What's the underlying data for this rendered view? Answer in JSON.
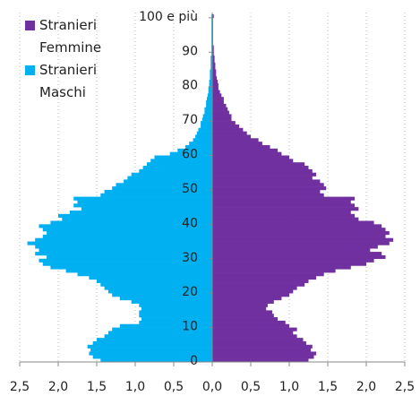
{
  "chart_data": {
    "type": "pyramid",
    "categories": [
      "0",
      null,
      null,
      null,
      null,
      null,
      null,
      null,
      null,
      null,
      "10",
      null,
      null,
      null,
      null,
      null,
      null,
      null,
      null,
      null,
      "20",
      null,
      null,
      null,
      null,
      null,
      null,
      null,
      null,
      null,
      "30",
      null,
      null,
      null,
      null,
      null,
      null,
      null,
      null,
      null,
      "40",
      null,
      null,
      null,
      null,
      null,
      null,
      null,
      null,
      null,
      "50",
      null,
      null,
      null,
      null,
      null,
      null,
      null,
      null,
      null,
      "60",
      null,
      null,
      null,
      null,
      null,
      null,
      null,
      null,
      null,
      "70",
      null,
      null,
      null,
      null,
      null,
      null,
      null,
      null,
      null,
      "80",
      null,
      null,
      null,
      null,
      null,
      null,
      null,
      null,
      null,
      "90",
      null,
      null,
      null,
      null,
      null,
      null,
      null,
      null,
      null,
      "100 e più"
    ],
    "series": [
      {
        "name": "Stranieri Femmine",
        "color": "#7030a0",
        "values": [
          1.25,
          1.32,
          1.35,
          1.28,
          1.3,
          1.22,
          1.18,
          1.1,
          1.05,
          1.1,
          1.0,
          0.95,
          0.85,
          0.8,
          0.78,
          0.7,
          0.72,
          0.8,
          0.9,
          1.0,
          1.05,
          1.1,
          1.2,
          1.25,
          1.35,
          1.45,
          1.6,
          1.8,
          2.0,
          2.1,
          2.25,
          2.2,
          2.05,
          2.15,
          2.3,
          2.35,
          2.25,
          2.3,
          2.25,
          2.2,
          2.1,
          1.9,
          1.85,
          1.8,
          1.9,
          1.85,
          1.8,
          1.85,
          1.45,
          1.4,
          1.48,
          1.45,
          1.4,
          1.3,
          1.35,
          1.3,
          1.25,
          1.2,
          1.05,
          1.0,
          0.9,
          0.85,
          0.75,
          0.65,
          0.6,
          0.5,
          0.45,
          0.4,
          0.35,
          0.3,
          0.25,
          0.25,
          0.22,
          0.2,
          0.18,
          0.15,
          0.15,
          0.12,
          0.1,
          0.08,
          0.08,
          0.07,
          0.06,
          0.05,
          0.05,
          0.04,
          0.04,
          0.03,
          0.03,
          0.02,
          0.02,
          0.02,
          0.01,
          0.01,
          0.01,
          0.01,
          0.01,
          0.01,
          0.01,
          0.01,
          0.02
        ]
      },
      {
        "name": "Stranieri Maschi",
        "color": "#00b0f0",
        "values": [
          -1.45,
          -1.55,
          -1.6,
          -1.58,
          -1.62,
          -1.55,
          -1.5,
          -1.4,
          -1.35,
          -1.3,
          -1.2,
          -0.95,
          -0.92,
          -0.95,
          -0.95,
          -0.92,
          -0.95,
          -1.05,
          -1.2,
          -1.3,
          -1.35,
          -1.4,
          -1.45,
          -1.5,
          -1.6,
          -1.75,
          -1.9,
          -2.1,
          -2.2,
          -2.25,
          -2.15,
          -2.3,
          -2.25,
          -2.3,
          -2.4,
          -2.3,
          -2.2,
          -2.15,
          -2.2,
          -2.25,
          -2.1,
          -1.95,
          -2.0,
          -1.85,
          -1.7,
          -1.8,
          -1.75,
          -1.8,
          -1.45,
          -1.4,
          -1.3,
          -1.25,
          -1.15,
          -1.1,
          -1.05,
          -0.95,
          -0.9,
          -0.85,
          -0.8,
          -0.75,
          -0.55,
          -0.45,
          -0.35,
          -0.3,
          -0.25,
          -0.22,
          -0.2,
          -0.18,
          -0.15,
          -0.15,
          -0.13,
          -0.12,
          -0.1,
          -0.1,
          -0.08,
          -0.08,
          -0.07,
          -0.06,
          -0.05,
          -0.05,
          -0.04,
          -0.04,
          -0.03,
          -0.03,
          -0.03,
          -0.02,
          -0.02,
          -0.02,
          -0.02,
          -0.01,
          -0.01,
          -0.01,
          -0.01,
          -0.01,
          -0.01,
          -0.01,
          -0.01,
          -0.01,
          -0.01,
          -0.01,
          -0.01
        ]
      }
    ],
    "xlim": [
      -2.5,
      2.5
    ],
    "xticks": [
      {
        "value": -2.5,
        "label": "2,5"
      },
      {
        "value": -2,
        "label": "2,0"
      },
      {
        "value": -1.5,
        "label": "1,5"
      },
      {
        "value": -1,
        "label": "1,0"
      },
      {
        "value": -0.5,
        "label": "0,5"
      },
      {
        "value": 0,
        "label": "0,0"
      },
      {
        "value": 0.5,
        "label": "0,5"
      },
      {
        "value": 1,
        "label": "1,0"
      },
      {
        "value": 1.5,
        "label": "1,5"
      },
      {
        "value": 2,
        "label": "2,0"
      },
      {
        "value": 2.5,
        "label": "2,5"
      }
    ],
    "grid": true
  }
}
